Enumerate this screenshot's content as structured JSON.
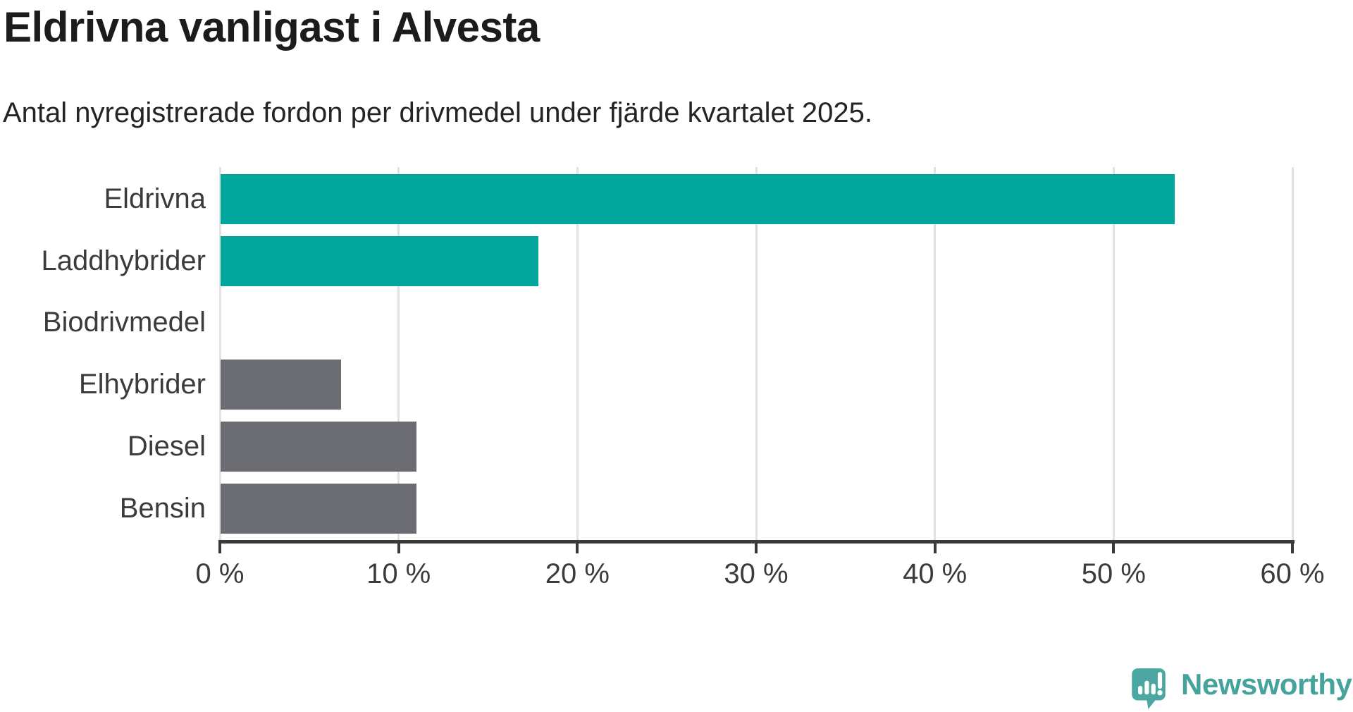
{
  "chart": {
    "title": "Eldrivna vanligast i Alvesta",
    "subtitle": "Antal nyregistrerade fordon per drivmedel under fjärde kvartalet 2025."
  },
  "chart_data": {
    "type": "bar",
    "orientation": "horizontal",
    "title": "Eldrivna vanligast i Alvesta",
    "subtitle": "Antal nyregistrerade fordon per drivmedel under fjärde kvartalet 2025.",
    "categories": [
      "Eldrivna",
      "Laddhybrider",
      "Biodrivmedel",
      "Elhybrider",
      "Diesel",
      "Bensin"
    ],
    "values": [
      53.4,
      17.8,
      0,
      6.8,
      11,
      11
    ],
    "unit": "%",
    "xlim": [
      0,
      60
    ],
    "x_ticks": [
      0,
      10,
      20,
      30,
      40,
      50,
      60
    ],
    "x_tick_labels": [
      "0 %",
      "10 %",
      "20 %",
      "30 %",
      "40 %",
      "50 %",
      "60 %"
    ],
    "bar_colors": [
      "#00a59b",
      "#00a59b",
      "#6b6b72",
      "#6b6b72",
      "#6b6b72",
      "#6b6b72"
    ],
    "grid": true,
    "legend": "none"
  },
  "colors": {
    "electric_chargeable_bars": "#00a59b",
    "other_fuel_bars": "#6b6b72",
    "gridline": "#e2e2e2",
    "axis": "#3a3a3a",
    "title_text": "#1c1c1c",
    "label_text": "#3b3b3b",
    "logo_teal": "#45a39c"
  },
  "logo": {
    "text": "Newsworthy",
    "icon": "speech-bubble-with-bar-chart-and-exclamation"
  }
}
